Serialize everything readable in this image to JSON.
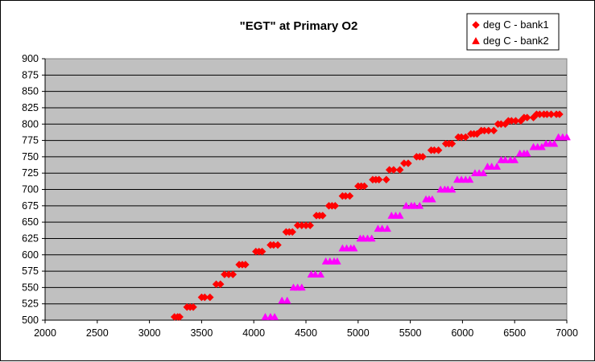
{
  "chart_data": {
    "type": "scatter",
    "title": "\"EGT\" at Primary O2",
    "xlabel": "",
    "ylabel": "",
    "xlim": [
      2000,
      7000
    ],
    "ylim": [
      500,
      900
    ],
    "xticks": [
      "2000",
      "2500",
      "3000",
      "3500",
      "4000",
      "4500",
      "5000",
      "5500",
      "6000",
      "6500",
      "7000"
    ],
    "yticks": [
      "500",
      "525",
      "550",
      "575",
      "600",
      "625",
      "650",
      "675",
      "700",
      "725",
      "750",
      "775",
      "800",
      "825",
      "850",
      "875",
      "900"
    ],
    "grid": "horizontal",
    "plot_background": "#C0C0C0",
    "legend_position": "top-right",
    "series": [
      {
        "name": "deg C - bank1",
        "marker": "diamond",
        "color": "#FF0000",
        "x": [
          3240,
          3270,
          3290,
          3360,
          3390,
          3420,
          3500,
          3530,
          3580,
          3640,
          3680,
          3720,
          3760,
          3800,
          3860,
          3890,
          3920,
          4020,
          4050,
          4080,
          4160,
          4190,
          4230,
          4310,
          4340,
          4370,
          4420,
          4460,
          4500,
          4540,
          4600,
          4630,
          4660,
          4720,
          4750,
          4780,
          4850,
          4880,
          4920,
          5000,
          5030,
          5060,
          5140,
          5170,
          5200,
          5270,
          5300,
          5340,
          5400,
          5440,
          5480,
          5560,
          5590,
          5620,
          5700,
          5730,
          5770,
          5840,
          5870,
          5900,
          5960,
          5990,
          6030,
          6080,
          6110,
          6140,
          6180,
          6210,
          6250,
          6300,
          6340,
          6370,
          6410,
          6440,
          6470,
          6510,
          6560,
          6590,
          6620,
          6680,
          6710,
          6740,
          6780,
          6810,
          6850,
          6900,
          6930
        ],
        "y": [
          505,
          505,
          505,
          520,
          520,
          520,
          535,
          535,
          535,
          555,
          555,
          570,
          570,
          570,
          585,
          585,
          585,
          605,
          605,
          605,
          615,
          615,
          615,
          635,
          635,
          635,
          645,
          645,
          645,
          645,
          660,
          660,
          660,
          675,
          675,
          675,
          690,
          690,
          690,
          705,
          705,
          705,
          715,
          715,
          715,
          715,
          730,
          730,
          730,
          740,
          740,
          750,
          750,
          750,
          760,
          760,
          760,
          770,
          770,
          770,
          780,
          780,
          780,
          785,
          785,
          785,
          790,
          790,
          790,
          790,
          800,
          800,
          800,
          805,
          805,
          805,
          805,
          810,
          810,
          810,
          815,
          815,
          815,
          815,
          815,
          815,
          815
        ]
      },
      {
        "name": "deg C - bank2",
        "marker": "triangle",
        "color": "#FF00FF",
        "x": [
          4110,
          4160,
          4200,
          4270,
          4320,
          4380,
          4420,
          4460,
          4550,
          4590,
          4640,
          4690,
          4730,
          4770,
          4800,
          4850,
          4890,
          4930,
          4960,
          5020,
          5050,
          5090,
          5130,
          5190,
          5230,
          5280,
          5320,
          5360,
          5400,
          5460,
          5510,
          5540,
          5590,
          5650,
          5680,
          5710,
          5790,
          5830,
          5860,
          5900,
          5950,
          5990,
          6030,
          6070,
          6120,
          6160,
          6200,
          6240,
          6280,
          6330,
          6370,
          6410,
          6460,
          6500,
          6550,
          6590,
          6620,
          6680,
          6720,
          6760,
          6800,
          6840,
          6880,
          6920,
          6960,
          7000
        ],
        "y": [
          505,
          505,
          505,
          530,
          530,
          550,
          550,
          550,
          570,
          570,
          570,
          590,
          590,
          590,
          590,
          610,
          610,
          610,
          610,
          625,
          625,
          625,
          625,
          640,
          640,
          640,
          660,
          660,
          660,
          675,
          675,
          675,
          675,
          685,
          685,
          685,
          700,
          700,
          700,
          700,
          715,
          715,
          715,
          715,
          725,
          725,
          725,
          735,
          735,
          735,
          745,
          745,
          745,
          745,
          755,
          755,
          755,
          765,
          765,
          765,
          770,
          770,
          770,
          780,
          780,
          780
        ]
      }
    ]
  }
}
